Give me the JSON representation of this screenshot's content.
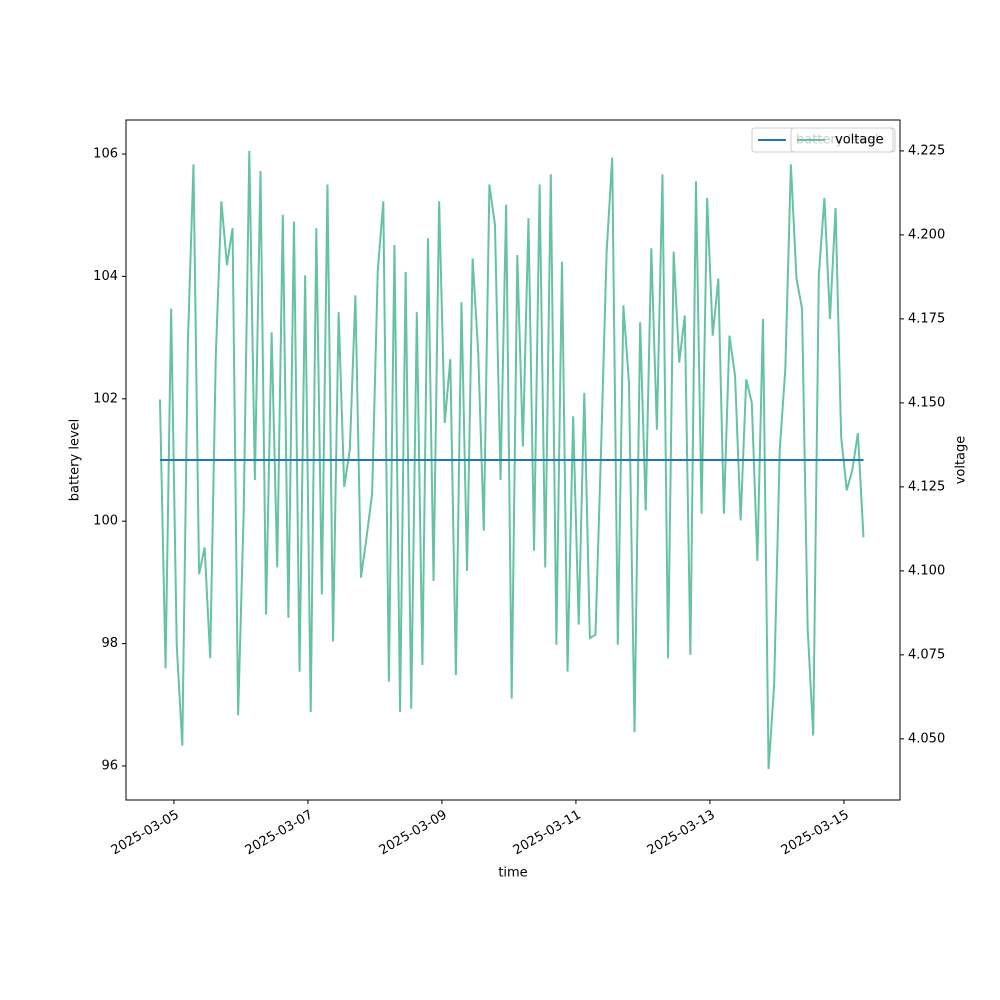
{
  "chart_data": {
    "type": "line",
    "x_label": "time",
    "y_label": "battery level",
    "y2_label": "voltage",
    "x": [
      "2025-03-04T19:00",
      "2025-03-04T21:00",
      "2025-03-04T23:00",
      "2025-03-05T01:00",
      "2025-03-05T03:00",
      "2025-03-05T05:00",
      "2025-03-05T07:00",
      "2025-03-05T09:00",
      "2025-03-05T11:00",
      "2025-03-05T13:00",
      "2025-03-05T15:00",
      "2025-03-05T17:00",
      "2025-03-05T19:00",
      "2025-03-05T21:00",
      "2025-03-05T23:00",
      "2025-03-06T01:00",
      "2025-03-06T03:00",
      "2025-03-06T05:00",
      "2025-03-06T07:00",
      "2025-03-06T09:00",
      "2025-03-06T11:00",
      "2025-03-06T13:00",
      "2025-03-06T15:00",
      "2025-03-06T17:00",
      "2025-03-06T19:00",
      "2025-03-06T21:00",
      "2025-03-06T23:00",
      "2025-03-07T01:00",
      "2025-03-07T03:00",
      "2025-03-07T05:00",
      "2025-03-07T07:00",
      "2025-03-07T09:00",
      "2025-03-07T11:00",
      "2025-03-07T13:00",
      "2025-03-07T15:00",
      "2025-03-07T17:00",
      "2025-03-07T19:00",
      "2025-03-07T21:00",
      "2025-03-07T23:00",
      "2025-03-08T01:00",
      "2025-03-08T03:00",
      "2025-03-08T05:00",
      "2025-03-08T07:00",
      "2025-03-08T09:00",
      "2025-03-08T11:00",
      "2025-03-08T13:00",
      "2025-03-08T15:00",
      "2025-03-08T17:00",
      "2025-03-08T19:00",
      "2025-03-08T21:00",
      "2025-03-08T23:00",
      "2025-03-09T01:00",
      "2025-03-09T03:00",
      "2025-03-09T05:00",
      "2025-03-09T07:00",
      "2025-03-09T09:00",
      "2025-03-09T11:00",
      "2025-03-09T13:00",
      "2025-03-09T15:00",
      "2025-03-09T17:00",
      "2025-03-09T19:00",
      "2025-03-09T21:00",
      "2025-03-09T23:00",
      "2025-03-10T01:00",
      "2025-03-10T03:00",
      "2025-03-10T05:00",
      "2025-03-10T07:00",
      "2025-03-10T09:00",
      "2025-03-10T11:00",
      "2025-03-10T13:00",
      "2025-03-10T15:00",
      "2025-03-10T17:00",
      "2025-03-10T19:00",
      "2025-03-10T21:00",
      "2025-03-10T23:00",
      "2025-03-11T01:00",
      "2025-03-11T03:00",
      "2025-03-11T05:00",
      "2025-03-11T07:00",
      "2025-03-11T09:00",
      "2025-03-11T11:00",
      "2025-03-11T13:00",
      "2025-03-11T15:00",
      "2025-03-11T17:00",
      "2025-03-11T19:00",
      "2025-03-11T21:00",
      "2025-03-11T23:00",
      "2025-03-12T01:00",
      "2025-03-12T03:00",
      "2025-03-12T05:00",
      "2025-03-12T07:00",
      "2025-03-12T09:00",
      "2025-03-12T11:00",
      "2025-03-12T13:00",
      "2025-03-12T15:00",
      "2025-03-12T17:00",
      "2025-03-12T19:00",
      "2025-03-12T21:00",
      "2025-03-12T23:00",
      "2025-03-13T01:00",
      "2025-03-13T03:00",
      "2025-03-13T05:00",
      "2025-03-13T07:00",
      "2025-03-13T09:00",
      "2025-03-13T11:00",
      "2025-03-13T13:00",
      "2025-03-13T15:00",
      "2025-03-13T17:00",
      "2025-03-13T19:00",
      "2025-03-13T21:00",
      "2025-03-13T23:00",
      "2025-03-14T01:00",
      "2025-03-14T03:00",
      "2025-03-14T05:00",
      "2025-03-14T07:00",
      "2025-03-14T09:00",
      "2025-03-14T11:00",
      "2025-03-14T13:00",
      "2025-03-14T15:00",
      "2025-03-14T17:00",
      "2025-03-14T19:00",
      "2025-03-14T21:00",
      "2025-03-14T23:00",
      "2025-03-15T01:00",
      "2025-03-15T03:00",
      "2025-03-15T05:00",
      "2025-03-15T07:00"
    ],
    "series": [
      {
        "name": "battery level",
        "color": "#1f77b4",
        "axis": "y",
        "values": [
          101,
          101,
          101,
          101,
          101,
          101,
          101,
          101,
          101,
          101,
          101,
          101,
          101,
          101,
          101,
          101,
          101,
          101,
          101,
          101,
          101,
          101,
          101,
          101,
          101,
          101,
          101,
          101,
          101,
          101,
          101,
          101,
          101,
          101,
          101,
          101,
          101,
          101,
          101,
          101,
          101,
          101,
          101,
          101,
          101,
          101,
          101,
          101,
          101,
          101,
          101,
          101,
          101,
          101,
          101,
          101,
          101,
          101,
          101,
          101,
          101,
          101,
          101,
          101,
          101,
          101,
          101,
          101,
          101,
          101,
          101,
          101,
          101,
          101,
          101,
          101,
          101,
          101,
          101,
          101,
          101,
          101,
          101,
          101,
          101,
          101,
          101,
          101,
          101,
          101,
          101,
          101,
          101,
          101,
          101,
          101,
          101,
          101,
          101,
          101,
          101,
          101,
          101,
          101,
          101,
          101,
          101,
          101,
          101,
          101,
          101,
          101,
          101,
          101,
          101,
          101,
          101,
          101,
          101,
          101,
          101,
          101,
          101,
          101,
          101,
          101,
          101
        ]
      },
      {
        "name": "voltage",
        "color": "#66c2a5",
        "axis": "y2",
        "values": [
          4.151,
          4.071,
          4.178,
          4.078,
          4.048,
          4.168,
          4.221,
          4.099,
          4.107,
          4.074,
          4.164,
          4.21,
          4.191,
          4.202,
          4.057,
          4.118,
          4.225,
          4.127,
          4.219,
          4.087,
          4.171,
          4.101,
          4.206,
          4.086,
          4.204,
          4.07,
          4.188,
          4.058,
          4.202,
          4.093,
          4.215,
          4.079,
          4.177,
          4.125,
          4.136,
          4.182,
          4.098,
          4.11,
          4.123,
          4.189,
          4.21,
          4.067,
          4.197,
          4.058,
          4.189,
          4.059,
          4.177,
          4.072,
          4.199,
          4.097,
          4.21,
          4.144,
          4.163,
          4.069,
          4.18,
          4.1,
          4.193,
          4.165,
          4.112,
          4.215,
          4.203,
          4.127,
          4.209,
          4.062,
          4.194,
          4.137,
          4.205,
          4.106,
          4.215,
          4.101,
          4.218,
          4.078,
          4.192,
          4.07,
          4.146,
          4.084,
          4.153,
          4.08,
          4.081,
          4.136,
          4.195,
          4.223,
          4.078,
          4.179,
          4.156,
          4.052,
          4.174,
          4.118,
          4.196,
          4.142,
          4.218,
          4.074,
          4.195,
          4.162,
          4.176,
          4.075,
          4.216,
          4.117,
          4.211,
          4.17,
          4.187,
          4.117,
          4.17,
          4.158,
          4.115,
          4.157,
          4.15,
          4.103,
          4.175,
          4.041,
          4.066,
          4.136,
          4.16,
          4.221,
          4.187,
          4.178,
          4.083,
          4.051,
          4.188,
          4.211,
          4.175,
          4.208,
          4.14,
          4.124,
          4.13,
          4.141,
          4.11
        ]
      }
    ],
    "xlim": [
      "2025-03-04T06:50",
      "2025-03-15T20:05"
    ],
    "xticks": [
      "2025-03-05",
      "2025-03-07",
      "2025-03-09",
      "2025-03-11",
      "2025-03-13",
      "2025-03-15"
    ],
    "ylim": [
      95.444,
      106.556
    ],
    "yticks": [
      96,
      98,
      100,
      102,
      104,
      106
    ],
    "y2lim": [
      4.0318,
      4.2342
    ],
    "y2ticks": [
      {
        "value": 4.05,
        "label": "4.050"
      },
      4.075,
      {
        "value": 4.1,
        "label": "4.100"
      },
      4.125,
      {
        "value": 4.15,
        "label": "4.150"
      },
      4.175,
      {
        "value": 4.2,
        "label": "4.200"
      },
      4.225
    ],
    "legend": "upper right"
  }
}
